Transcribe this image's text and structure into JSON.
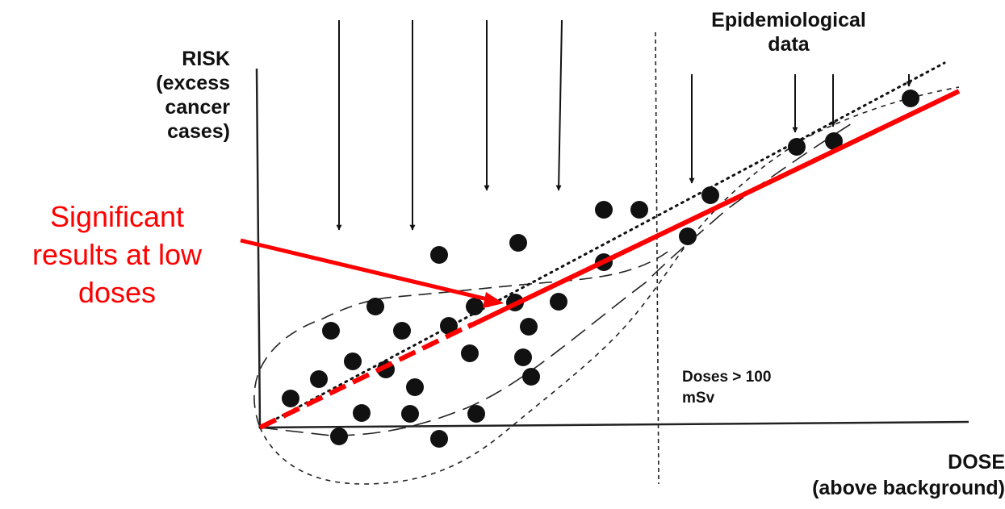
{
  "labels": {
    "y_axis": [
      "RISK",
      "(excess",
      "cancer",
      "cases)"
    ],
    "x_axis": [
      "DOSE",
      "(above background)"
    ],
    "epidemiological": [
      "Epidemiological",
      "data"
    ],
    "significant": [
      "Significant",
      "results at low",
      "doses"
    ],
    "high_dose": [
      "Doses > 100",
      "mSv"
    ]
  },
  "colors": {
    "ink": "#111111",
    "highlight": "#ff0000",
    "background": "#ffffff"
  },
  "icons": {
    "arrow": "down-arrow-icon",
    "dot": "filled-circle-icon"
  }
}
